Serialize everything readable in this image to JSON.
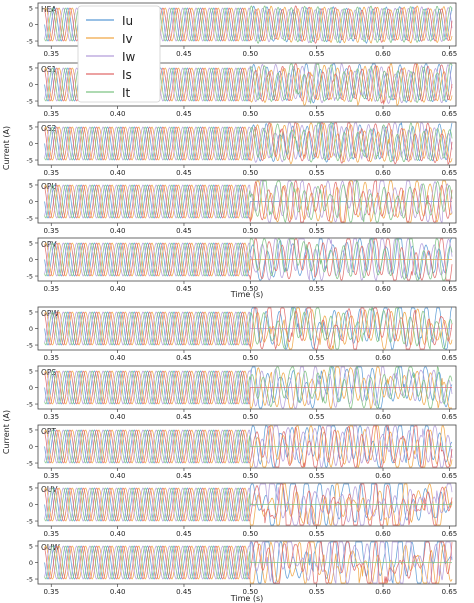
{
  "figure": {
    "groups": [
      {
        "ylabel": "Current (A)",
        "xlabel": "Time (s)"
      },
      {
        "ylabel": "Current (A)",
        "xlabel": "Time (s)"
      }
    ]
  },
  "chart_data": {
    "type": "line",
    "xlim": [
      0.34,
      0.655
    ],
    "ylim": [
      -6.5,
      6.5
    ],
    "yticks": [
      "5",
      "0",
      "-5"
    ],
    "xticks_first_panel": [
      "0.35",
      "",
      "0.45",
      "0.50",
      "0.55",
      "0.60",
      "0.65"
    ],
    "xticks": [
      "0.35",
      "0.40",
      "0.45",
      "0.50",
      "0.55",
      "0.60",
      "0.65"
    ],
    "fault_time": 0.5,
    "grid": false,
    "legend": {
      "placement": "top-left (first panel)",
      "entries": [
        {
          "name": "Iu",
          "color": "#5b9bd5"
        },
        {
          "name": "Iv",
          "color": "#f0a646"
        },
        {
          "name": "Iw",
          "color": "#b39ddb"
        },
        {
          "name": "Is",
          "color": "#e06b6b"
        },
        {
          "name": "It",
          "color": "#7dc383"
        }
      ]
    },
    "series_colors": [
      "#5b9bd5",
      "#f0a646",
      "#b39ddb",
      "#e06b6b",
      "#7dc383"
    ],
    "panels": [
      {
        "label": "HEA",
        "group": 0,
        "amplitude": 5,
        "frequency_hz": 100,
        "disturbance": 0,
        "zero_phase": -1
      },
      {
        "label": "OS1",
        "group": 0,
        "amplitude": 5,
        "frequency_hz": 100,
        "disturbance": 1.5,
        "zero_phase": -1
      },
      {
        "label": "OS2",
        "group": 0,
        "amplitude": 5,
        "frequency_hz": 100,
        "disturbance": 1.8,
        "zero_phase": -1
      },
      {
        "label": "OPU",
        "group": 0,
        "amplitude": 5,
        "frequency_hz": 100,
        "disturbance": 3.0,
        "zero_phase": 0
      },
      {
        "label": "OPV",
        "group": 0,
        "amplitude": 5,
        "frequency_hz": 100,
        "disturbance": 3.2,
        "zero_phase": 1
      },
      {
        "label": "OPW",
        "group": 1,
        "amplitude": 5,
        "frequency_hz": 100,
        "disturbance": 3.5,
        "zero_phase": 2
      },
      {
        "label": "OPS",
        "group": 1,
        "amplitude": 5,
        "frequency_hz": 100,
        "disturbance": 3.5,
        "zero_phase": 3
      },
      {
        "label": "OPT",
        "group": 1,
        "amplitude": 5,
        "frequency_hz": 100,
        "disturbance": 3.5,
        "zero_phase": 4
      },
      {
        "label": "OUV",
        "group": 1,
        "amplitude": 5,
        "frequency_hz": 100,
        "disturbance": 6.0,
        "zero_phase": 4
      },
      {
        "label": "OUW",
        "group": 1,
        "amplitude": 5,
        "frequency_hz": 100,
        "disturbance": 6.0,
        "zero_phase": 4
      }
    ]
  }
}
